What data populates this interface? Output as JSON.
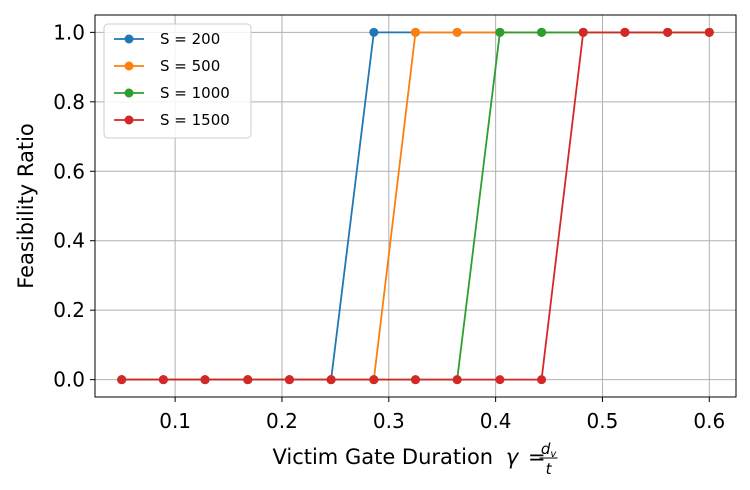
{
  "chart_data": {
    "type": "line",
    "xlabel_text": "Victim Gate Duration",
    "xlabel_symbol": "γ",
    "xlabel_fraction_num": "d",
    "xlabel_fraction_num_sub": "v",
    "xlabel_fraction_den": "t",
    "ylabel": "Feasibility Ratio",
    "xlim": [
      0.025,
      0.625
    ],
    "ylim": [
      -0.05,
      1.05
    ],
    "xticks": [
      0.1,
      0.2,
      0.3,
      0.4,
      0.5,
      0.6
    ],
    "xtick_labels": [
      "0.1",
      "0.2",
      "0.3",
      "0.4",
      "0.5",
      "0.6"
    ],
    "yticks": [
      0.0,
      0.2,
      0.4,
      0.6,
      0.8,
      1.0
    ],
    "ytick_labels": [
      "0.0",
      "0.2",
      "0.4",
      "0.6",
      "0.8",
      "1.0"
    ],
    "grid": true,
    "legend_position": "top-left",
    "x": [
      0.05,
      0.089,
      0.128,
      0.168,
      0.207,
      0.246,
      0.286,
      0.325,
      0.364,
      0.404,
      0.443,
      0.482,
      0.521,
      0.561,
      0.6
    ],
    "series": [
      {
        "name": "S = 200",
        "color": "#1f77b4",
        "values": [
          0,
          0,
          0,
          0,
          0,
          0,
          1,
          1,
          1,
          1,
          1,
          1,
          1,
          1,
          1
        ]
      },
      {
        "name": "S = 500",
        "color": "#ff7f0e",
        "values": [
          0,
          0,
          0,
          0,
          0,
          0,
          0,
          1,
          1,
          1,
          1,
          1,
          1,
          1,
          1
        ]
      },
      {
        "name": "S = 1000",
        "color": "#2ca02c",
        "values": [
          0,
          0,
          0,
          0,
          0,
          0,
          0,
          0,
          0,
          1,
          1,
          1,
          1,
          1,
          1
        ]
      },
      {
        "name": "S = 1500",
        "color": "#d62728",
        "values": [
          0,
          0,
          0,
          0,
          0,
          0,
          0,
          0,
          0,
          0,
          0,
          1,
          1,
          1,
          1
        ]
      }
    ]
  }
}
